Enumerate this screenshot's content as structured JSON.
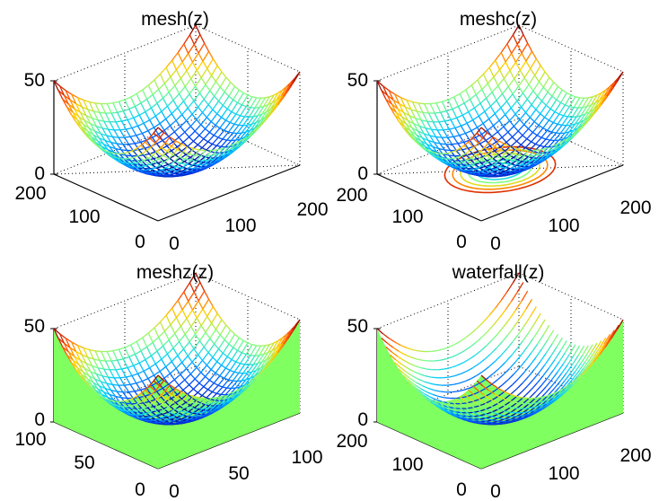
{
  "figure": {
    "background": "#ffffff",
    "axis_color": "#000000",
    "colormap": [
      "#00008f",
      "#0050ff",
      "#00d0ff",
      "#80ff80",
      "#ffd000",
      "#ff4000",
      "#800000"
    ],
    "curtain_color": "#80ff60"
  },
  "chart_data": [
    {
      "type": "surface",
      "plot_style": "mesh",
      "title": "mesh(z)",
      "function": "z = x^2 + y^2 (paraboloid, grid centred on the origin)",
      "zlim": [
        0,
        50
      ],
      "z_ticks": [
        "0",
        "50"
      ],
      "x_ticks": [
        "0",
        "100",
        "200"
      ],
      "y_ticks": [
        "0",
        "100",
        "200"
      ],
      "grid": true,
      "contour_below": false,
      "curtain": false
    },
    {
      "type": "surface",
      "plot_style": "meshc",
      "title": "meshc(z)",
      "function": "z = x^2 + y^2 (paraboloid, grid centred on the origin)",
      "zlim": [
        0,
        50
      ],
      "z_ticks": [
        "0",
        "50"
      ],
      "x_ticks": [
        "0",
        "100",
        "200"
      ],
      "y_ticks": [
        "0",
        "100",
        "200"
      ],
      "grid": true,
      "contour_below": true,
      "curtain": false
    },
    {
      "type": "surface",
      "plot_style": "meshz",
      "title": "meshz(z)",
      "function": "z = x^2 + y^2 (paraboloid, grid centred on the origin)",
      "zlim": [
        0,
        50
      ],
      "z_ticks": [
        "0",
        "50"
      ],
      "x_ticks": [
        "0",
        "50",
        "100"
      ],
      "y_ticks": [
        "0",
        "50",
        "100"
      ],
      "grid": true,
      "contour_below": false,
      "curtain": true
    },
    {
      "type": "surface",
      "plot_style": "waterfall",
      "title": "waterfall(z)",
      "function": "z = x^2 + y^2 (paraboloid, grid centred on the origin)",
      "zlim": [
        0,
        50
      ],
      "z_ticks": [
        "0",
        "50"
      ],
      "x_ticks": [
        "0",
        "100",
        "200"
      ],
      "y_ticks": [
        "0",
        "100",
        "200"
      ],
      "grid": true,
      "contour_below": false,
      "curtain": true
    }
  ]
}
